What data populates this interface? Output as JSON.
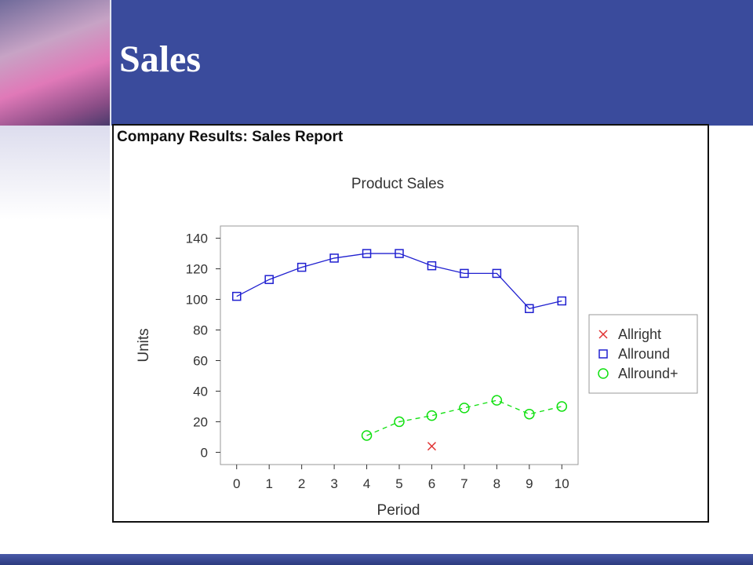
{
  "slide": {
    "title": "Sales"
  },
  "report": {
    "title": "Company Results: Sales Report"
  },
  "chart_data": {
    "type": "line",
    "title": "Product Sales",
    "xlabel": "Period",
    "ylabel": "Units",
    "xlim": [
      -0.5,
      10.5
    ],
    "ylim": [
      -8,
      148
    ],
    "xticks": [
      0,
      1,
      2,
      3,
      4,
      5,
      6,
      7,
      8,
      9,
      10
    ],
    "yticks": [
      0,
      20,
      40,
      60,
      80,
      100,
      120,
      140
    ],
    "grid": false,
    "legend_position": "right",
    "series": [
      {
        "name": "Allright",
        "marker": "x",
        "color": "#e03030",
        "line": "none",
        "points": [
          [
            6,
            4
          ]
        ]
      },
      {
        "name": "Allround",
        "marker": "square",
        "color": "#2020d0",
        "line": "solid",
        "points": [
          [
            0,
            102
          ],
          [
            1,
            113
          ],
          [
            2,
            121
          ],
          [
            3,
            127
          ],
          [
            4,
            130
          ],
          [
            5,
            130
          ],
          [
            6,
            122
          ],
          [
            7,
            117
          ],
          [
            8,
            117
          ],
          [
            9,
            94
          ],
          [
            10,
            99
          ]
        ]
      },
      {
        "name": "Allround+",
        "marker": "circle",
        "color": "#10e010",
        "line": "dashed",
        "points": [
          [
            4,
            11
          ],
          [
            5,
            20
          ],
          [
            6,
            24
          ],
          [
            7,
            29
          ],
          [
            8,
            34
          ],
          [
            9,
            25
          ],
          [
            10,
            30
          ]
        ]
      }
    ]
  }
}
